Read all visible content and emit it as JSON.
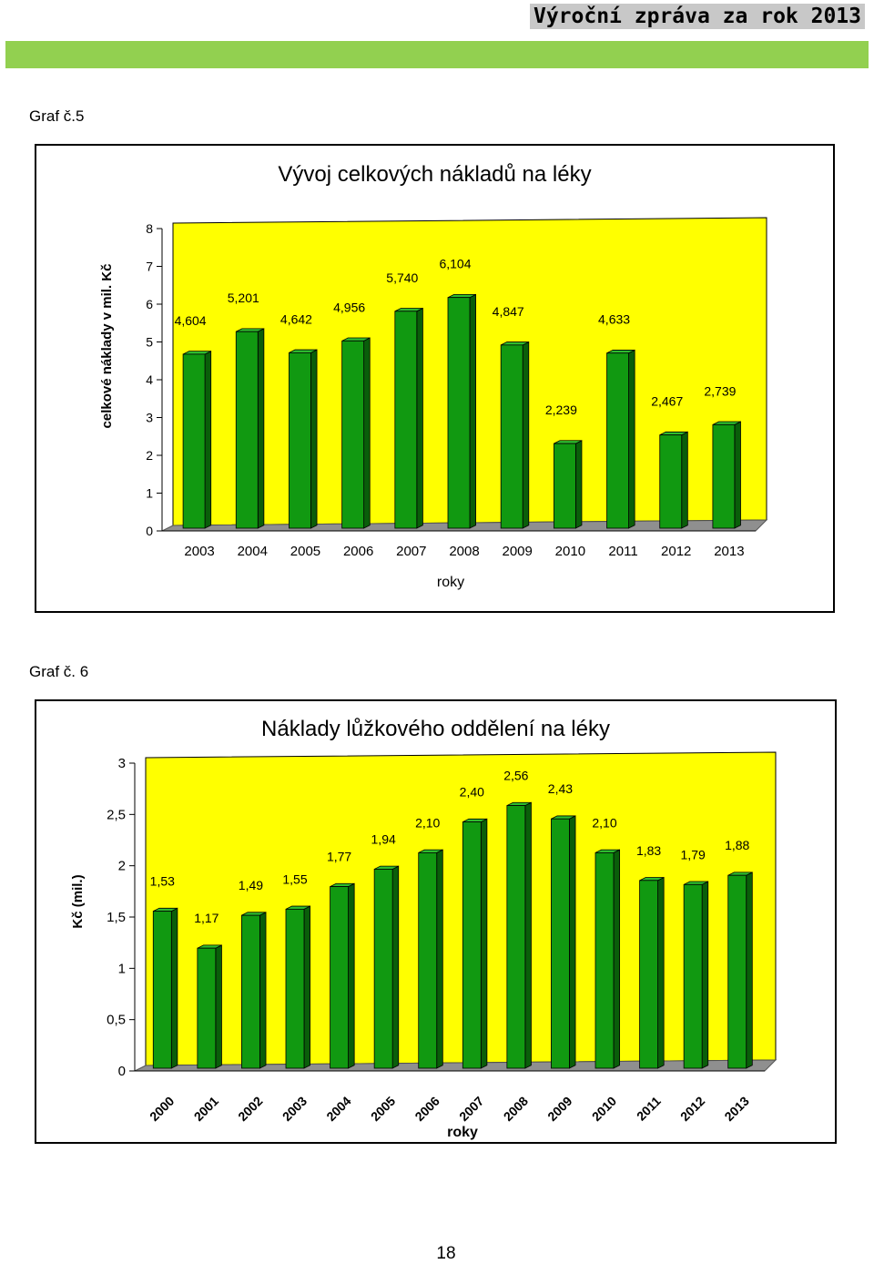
{
  "header": {
    "title": "Výroční zpráva za rok 2013"
  },
  "charts": [
    {
      "label": "Graf č.5"
    },
    {
      "label": "Graf č. 6"
    }
  ],
  "chart_data": [
    {
      "type": "bar",
      "title": "Vývoj celkových nákladů na léky",
      "xlabel": "roky",
      "ylabel": "celkové náklady v mil. Kč",
      "categories": [
        "2003",
        "2004",
        "2005",
        "2006",
        "2007",
        "2008",
        "2009",
        "2010",
        "2011",
        "2012",
        "2013"
      ],
      "values": [
        4.604,
        5.201,
        4.642,
        4.956,
        5.74,
        6.104,
        4.847,
        2.239,
        4.633,
        2.467,
        2.739
      ],
      "value_labels": [
        "4,604",
        "5,201",
        "4,642",
        "4,956",
        "5,740",
        "6,104",
        "4,847",
        "2,239",
        "4,633",
        "2,467",
        "2,739"
      ],
      "yticks": [
        "0",
        "1",
        "2",
        "3",
        "4",
        "5",
        "6",
        "7",
        "8"
      ],
      "ylim": [
        0,
        8
      ],
      "grid": false,
      "style": "3d",
      "colors": {
        "bar": "#119911",
        "bar_side": "#0a5e0a",
        "bar_top": "#2ebd2e",
        "plot_bg": "#ffff00",
        "floor": "#8f8f8f"
      }
    },
    {
      "type": "bar",
      "title": "Náklady lůžkového oddělení na léky",
      "xlabel": "roky",
      "ylabel": "Kč (mil.)",
      "categories": [
        "2000",
        "2001",
        "2002",
        "2003",
        "2004",
        "2005",
        "2006",
        "2007",
        "2008",
        "2009",
        "2010",
        "2011",
        "2012",
        "2013"
      ],
      "values": [
        1.53,
        1.17,
        1.49,
        1.55,
        1.77,
        1.94,
        2.1,
        2.4,
        2.56,
        2.43,
        2.1,
        1.83,
        1.79,
        1.88
      ],
      "value_labels": [
        "1,53",
        "1,17",
        "1,49",
        "1,55",
        "1,77",
        "1,94",
        "2,10",
        "2,40",
        "2,56",
        "2,43",
        "2,10",
        "1,83",
        "1,79",
        "1,88"
      ],
      "yticks": [
        "0",
        "0,5",
        "1",
        "1,5",
        "2",
        "2,5",
        "3"
      ],
      "ylim": [
        0,
        3
      ],
      "grid": false,
      "style": "3d",
      "colors": {
        "bar": "#119911",
        "bar_side": "#0a5e0a",
        "bar_top": "#2ebd2e",
        "plot_bg": "#ffff00",
        "floor": "#8f8f8f"
      }
    }
  ],
  "footer": {
    "page_number": "18"
  }
}
